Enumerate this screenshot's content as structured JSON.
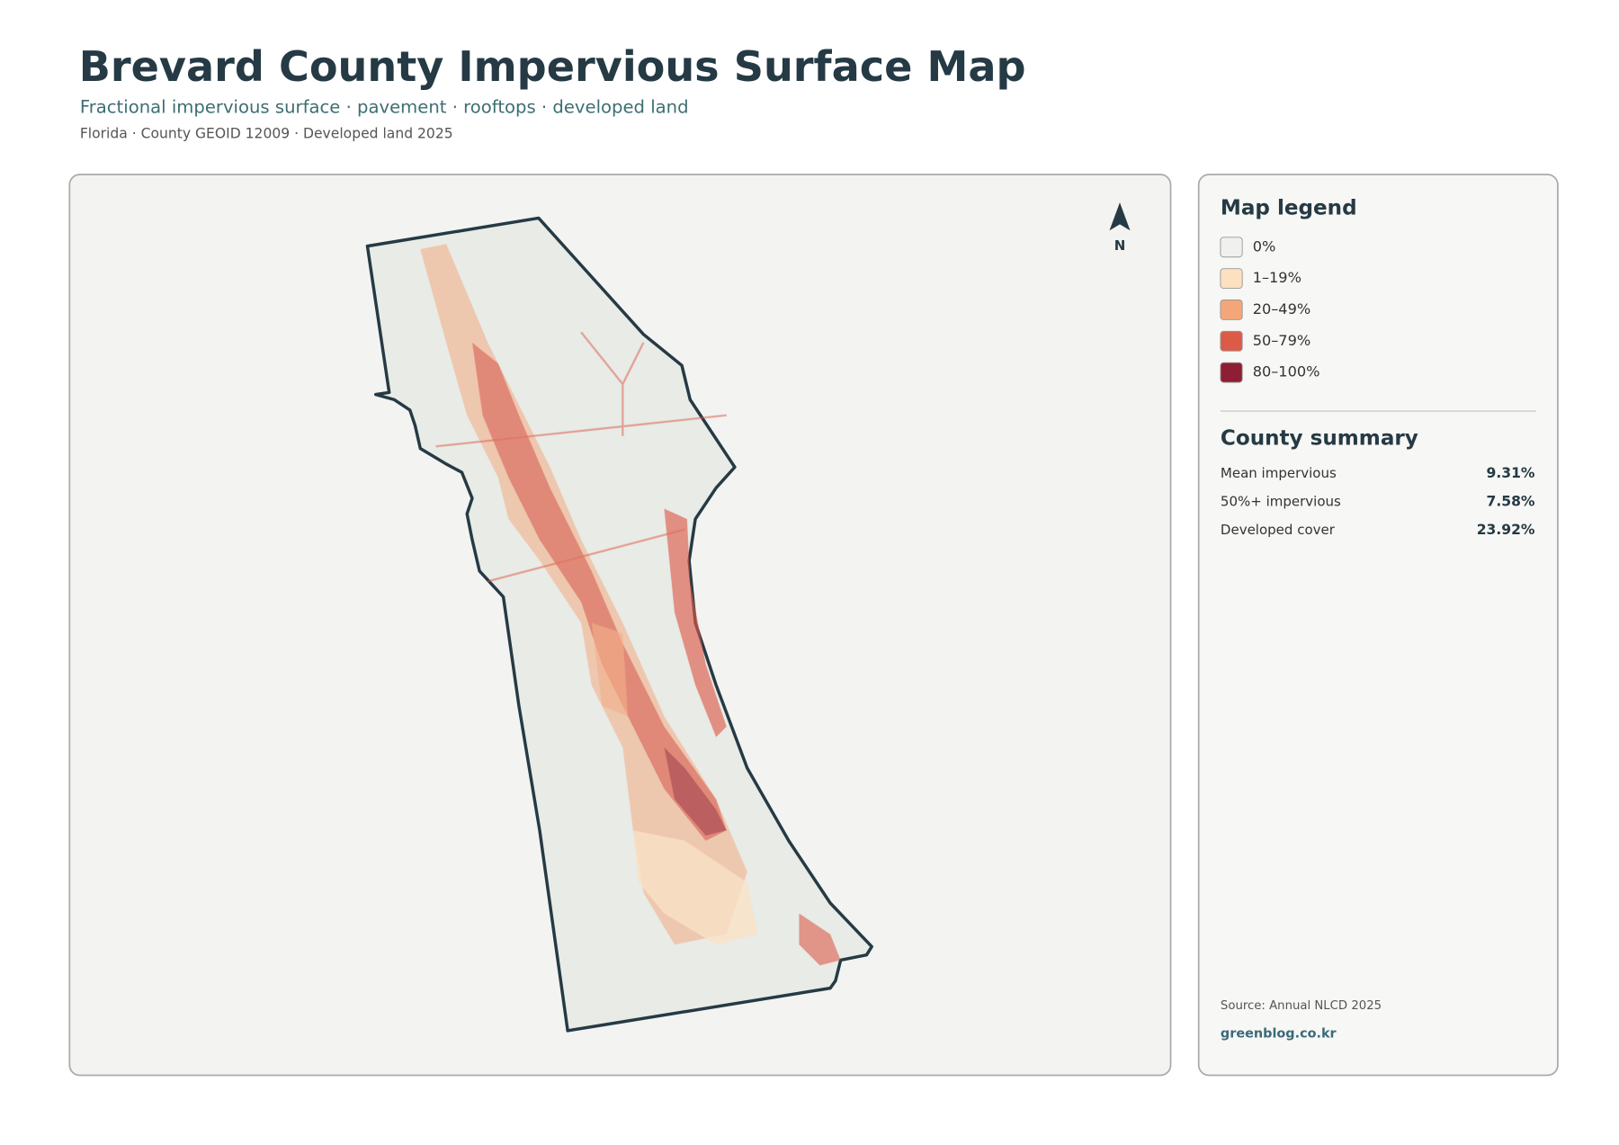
{
  "header": {
    "title": "Brevard County Impervious Surface Map",
    "subtitle": "Fractional impervious surface · pavement · rooftops · developed land",
    "meta": "Florida · County GEOID 12009 · Developed land 2025"
  },
  "map": {
    "north_label": "N"
  },
  "legend": {
    "title": "Map legend",
    "items": [
      {
        "label": "0%",
        "color": "#f0f0ee"
      },
      {
        "label": "1–19%",
        "color": "#fde0c0"
      },
      {
        "label": "20–49%",
        "color": "#f4a57a"
      },
      {
        "label": "50–79%",
        "color": "#dc5a48"
      },
      {
        "label": "80–100%",
        "color": "#8e1e33"
      }
    ]
  },
  "summary": {
    "title": "County summary",
    "rows": [
      {
        "label": "Mean impervious",
        "value": "9.31%"
      },
      {
        "label": "50%+ impervious",
        "value": "7.58%"
      },
      {
        "label": "Developed cover",
        "value": "23.92%"
      }
    ]
  },
  "footer": {
    "source": "Source: Annual NLCD 2025",
    "site": "greenblog.co.kr"
  }
}
